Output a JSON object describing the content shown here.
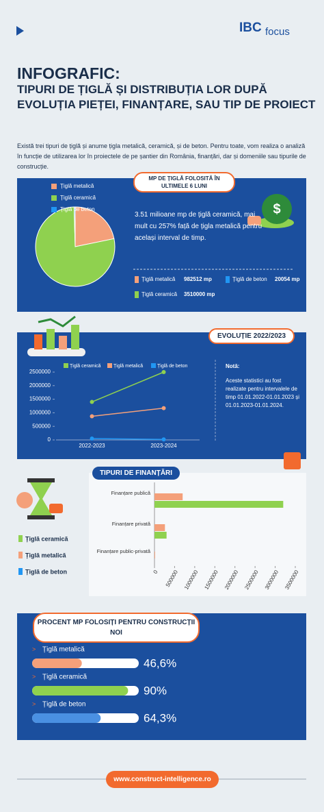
{
  "header": {
    "logo_brand": "IBC",
    "logo_word": "focus",
    "title": "INFOGRAFIC:",
    "subtitle": "TIPURI DE ȚIGLĂ ȘI DISTRIBUȚIA LOR DUPĂ EVOLUȚIA PIEȚEI, FINANȚARE, SAU TIP DE PROIECT"
  },
  "intro": "Există trei tipuri de țiglă și anume țigla metalică, ceramică, și de beton. Pentru toate, vom realiza o analiză în funcție de utilizarea lor în proiectele de pe șantier din România, finanțări, dar și domeniile sau tipurile de construcție.",
  "chart_data": [
    {
      "type": "pie",
      "title": "MP DE ȚIGLĂ FOLOSITĂ ÎN ULTIMELE 6 LUNI",
      "summary": "3.51 milioane mp de țiglă ceramică, mai mult cu 257% față de țigla metalică pentru același interval de timp.",
      "categories": [
        "Țiglă metalică",
        "Țiglă ceramică",
        "Țiglă de beton"
      ],
      "values": [
        982512,
        3510000,
        20054
      ],
      "value_labels": [
        "982512 mp",
        "3510000 mp",
        "20054 mp"
      ],
      "colors": [
        "#f4a07a",
        "#8fd14f",
        "#2196f3"
      ]
    },
    {
      "type": "line",
      "title": "EVOLUȚIE 2022/2023",
      "categories": [
        "2022-2023",
        "2023-2024"
      ],
      "series": [
        {
          "name": "Țiglă ceramică",
          "color": "#8fd14f",
          "values": [
            1400000,
            2500000
          ]
        },
        {
          "name": "Țiglă metalică",
          "color": "#f4a07a",
          "values": [
            870000,
            1170000
          ]
        },
        {
          "name": "Țiglă de beton",
          "color": "#2196f3",
          "values": [
            50000,
            20000
          ]
        }
      ],
      "ylim": [
        0,
        2500000
      ],
      "yticks": [
        0,
        500000,
        1000000,
        1500000,
        2000000,
        2500000
      ],
      "note_title": "Notă:",
      "note": "Aceste statistici au fost realizate pentru intervalele de timp 01.01.2022-01.01.2023 și 01.01.2023-01.01.2024."
    },
    {
      "type": "hbar",
      "title": "TIPURI DE FINANȚĂRI",
      "categories": [
        "Finanțare publică",
        "Finanțare privată",
        "Finanțare public-privată"
      ],
      "series": [
        {
          "name": "Țiglă ceramică",
          "color": "#8fd14f",
          "values": [
            3200000,
            300000,
            0
          ]
        },
        {
          "name": "Țiglă metalică",
          "color": "#f4a07a",
          "values": [
            700000,
            260000,
            15000
          ]
        },
        {
          "name": "Țiglă de beton",
          "color": "#2196f3",
          "values": [
            0,
            0,
            0
          ]
        }
      ],
      "xlim": [
        0,
        3500000
      ],
      "xticks": [
        0,
        500000,
        1000000,
        1500000,
        2000000,
        2500000,
        3000000,
        3500000
      ]
    },
    {
      "type": "progress",
      "title": "PROCENT MP FOLOSIȚI PENTRU CONSTRUCȚII NOI",
      "categories": [
        "Țiglă metalică",
        "Țiglă ceramică",
        "Țiglă de beton"
      ],
      "values": [
        46.6,
        90,
        64.3
      ],
      "value_labels": [
        "46,6%",
        "90%",
        "64,3%"
      ],
      "colors": [
        "#f4a07a",
        "#8fd14f",
        "#4a90e2"
      ],
      "xlim": [
        0,
        100
      ]
    }
  ],
  "footer": {
    "url": "www.construct-intelligence.ro"
  }
}
